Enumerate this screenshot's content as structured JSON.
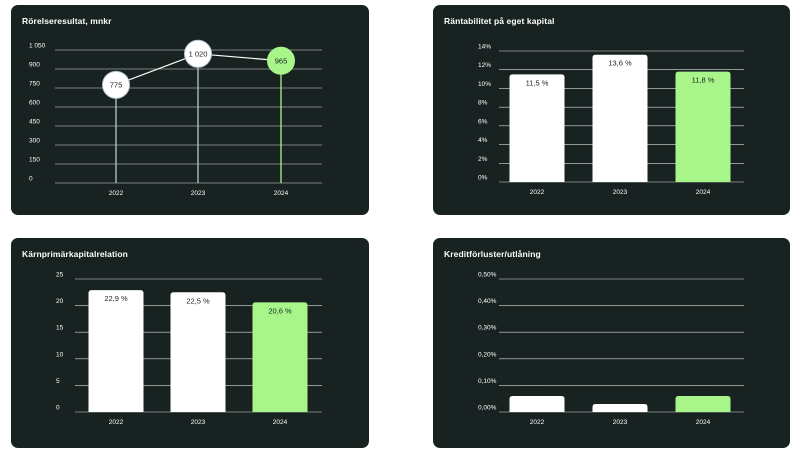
{
  "colors": {
    "background": "#ffffff",
    "panel": "#172221",
    "grid": "#ffffff",
    "bar": "#ffffff",
    "highlight": "#a8f58a",
    "dot_stroke": "#b5c6d6",
    "text_dark": "#172221"
  },
  "chart_data": [
    {
      "type": "line",
      "title": "Rörelseresultat, mnkr",
      "categories": [
        "2022",
        "2023",
        "2024"
      ],
      "values": [
        775,
        1020,
        965
      ],
      "value_labels": [
        "775",
        "1 020",
        "965"
      ],
      "yticks": [
        "0",
        "150",
        "300",
        "450",
        "600",
        "750",
        "900",
        "1 050"
      ],
      "ylim": [
        0,
        1050
      ],
      "highlight_index": 2,
      "grid": true
    },
    {
      "type": "bar",
      "title": "Räntabilitet på eget kapital",
      "categories": [
        "2022",
        "2023",
        "2024"
      ],
      "values": [
        11.5,
        13.6,
        11.8
      ],
      "value_labels": [
        "11,5 %",
        "13,6 %",
        "11,8 %"
      ],
      "yticks": [
        "0%",
        "2%",
        "4%",
        "6%",
        "8%",
        "10%",
        "12%",
        "14%"
      ],
      "ylim": [
        0,
        14
      ],
      "highlight_index": 2,
      "grid": true
    },
    {
      "type": "bar",
      "title": "Kärnprimärkapitalrelation",
      "categories": [
        "2022",
        "2023",
        "2024"
      ],
      "values": [
        22.9,
        22.5,
        20.6
      ],
      "value_labels": [
        "22,9 %",
        "22,5 %",
        "20,6 %"
      ],
      "yticks": [
        "0",
        "5",
        "10",
        "15",
        "20",
        "25"
      ],
      "ylim": [
        0,
        25
      ],
      "highlight_index": 2,
      "grid": true
    },
    {
      "type": "bar",
      "title": "Kreditförluster/utlåning",
      "categories": [
        "2022",
        "2023",
        "2024"
      ],
      "values": [
        0.06,
        0.03,
        0.06
      ],
      "value_labels": [
        "0,06%",
        "0,03%",
        "0,06%"
      ],
      "yticks": [
        "0,00%",
        "0,10%",
        "0,20%",
        "0,30%",
        "0,40%",
        "0,50%"
      ],
      "ylim": [
        0,
        0.5
      ],
      "highlight_index": 2,
      "grid": true
    }
  ]
}
